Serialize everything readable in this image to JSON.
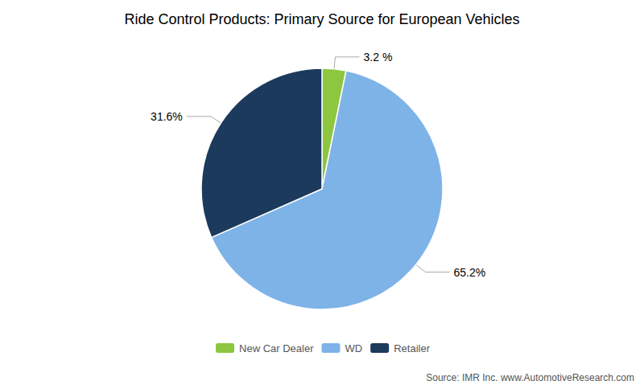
{
  "chart_data": {
    "type": "pie",
    "title": "Ride Control Products: Primary Source for European Vehicles",
    "categories": [
      "New Car Dealer",
      "WD",
      "Retailer"
    ],
    "values": [
      3.2,
      65.2,
      31.6
    ],
    "value_labels": [
      "3.2 %",
      "65.2%",
      "31.6%"
    ],
    "colors": [
      "#8DC63F",
      "#7EB3E8",
      "#1B3A5C"
    ],
    "data_labels": true,
    "legend": "bottom",
    "annotations": [
      "Source: IMR Inc. www.AutomotiveResearch.com"
    ]
  }
}
